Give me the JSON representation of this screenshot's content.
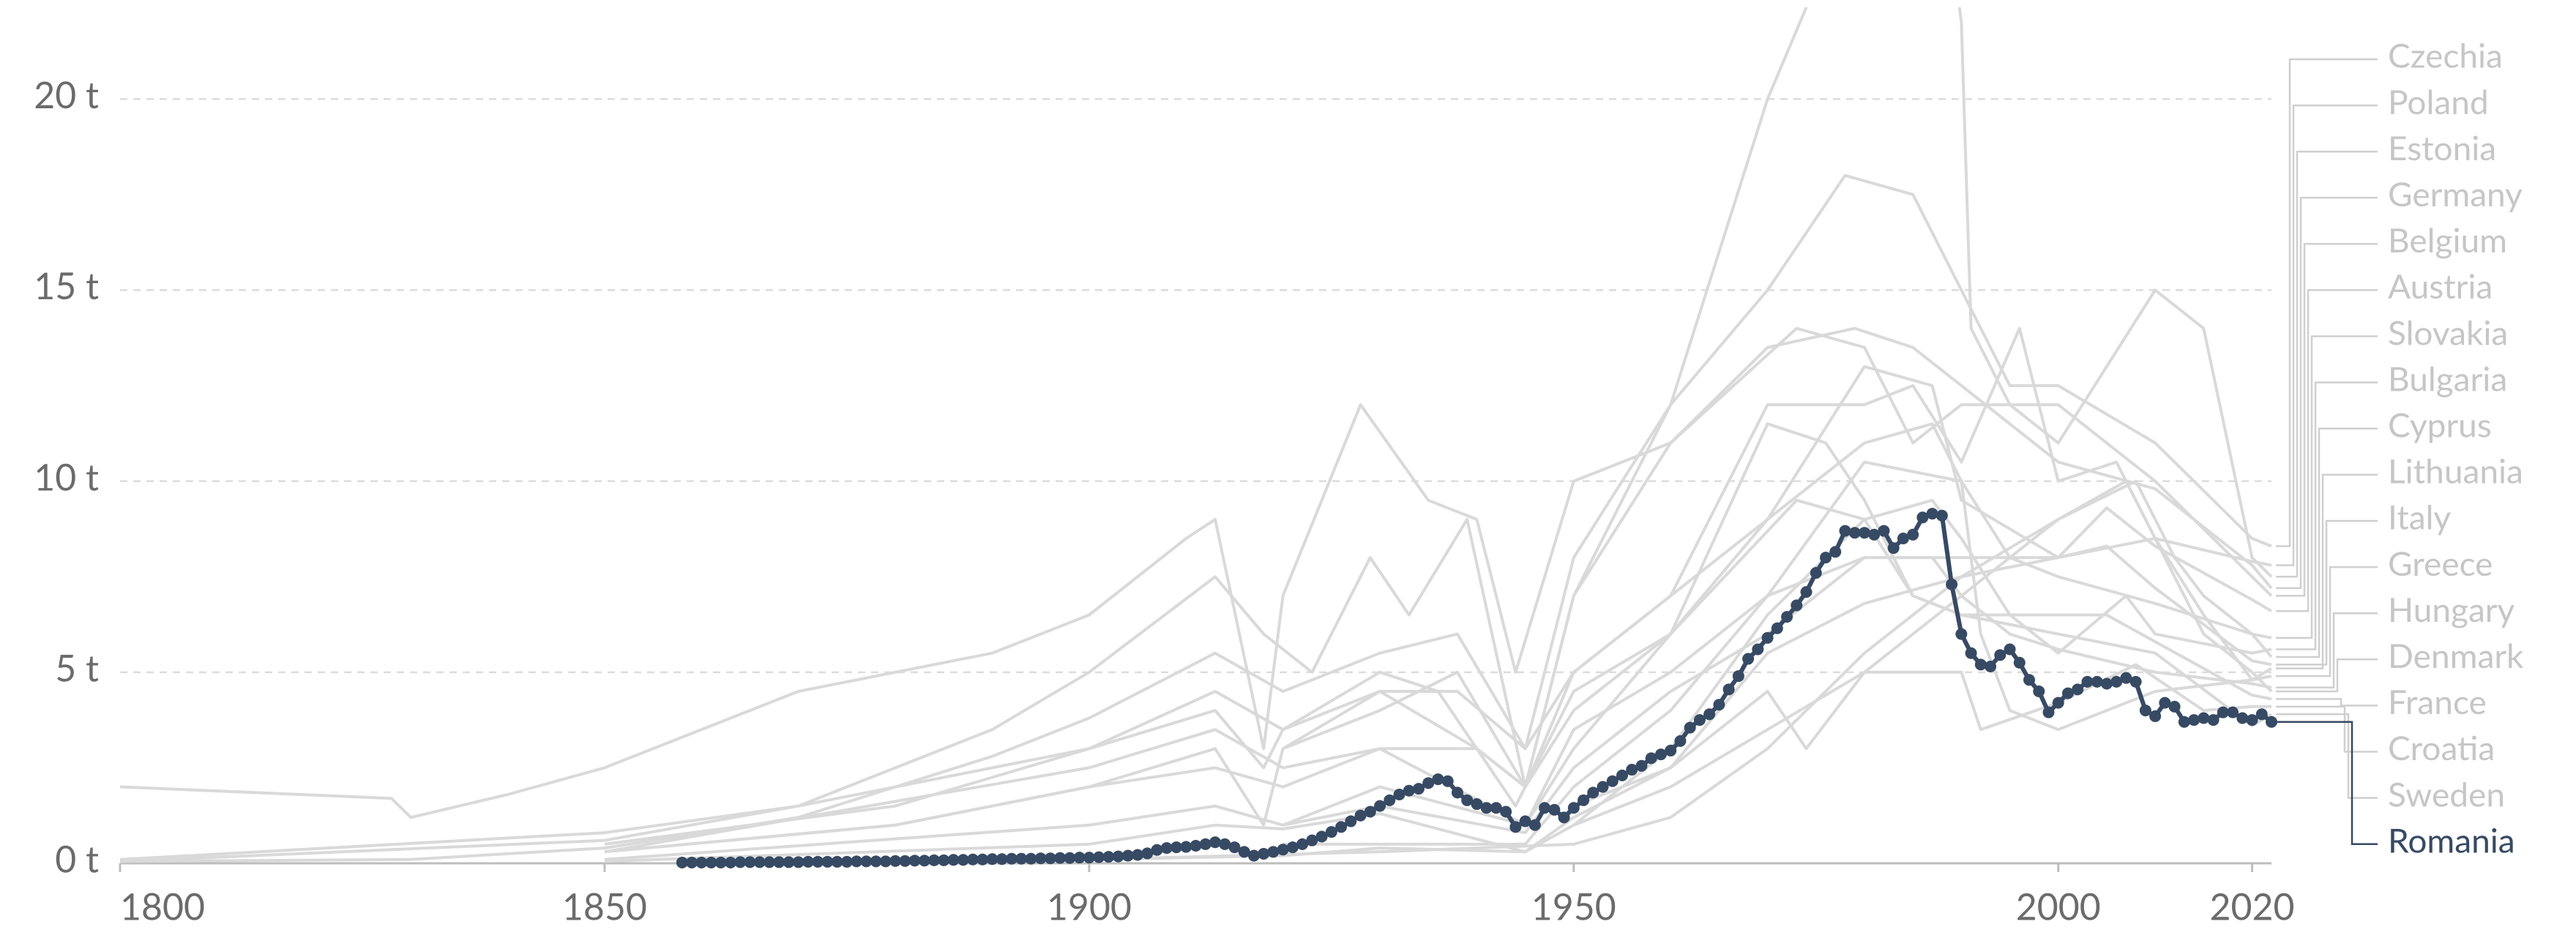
{
  "chart_data": {
    "type": "line",
    "xlim": [
      1800,
      2022
    ],
    "ylim": [
      0,
      22.4
    ],
    "xticks": [
      1800,
      1850,
      1900,
      1950,
      2000,
      2020
    ],
    "yticks": [
      {
        "value": 0,
        "label": "0 t"
      },
      {
        "value": 5,
        "label": "5 t"
      },
      {
        "value": 10,
        "label": "10 t"
      },
      {
        "value": 15,
        "label": "15 t"
      },
      {
        "value": 20,
        "label": "20 t"
      }
    ],
    "grid": true,
    "series": [
      {
        "name": "Czechia",
        "color": "#d9d9d9",
        "x": [
          1800,
          1830,
          1850,
          1870,
          1890,
          1900,
          1913,
          1920,
          1930,
          1938,
          1945,
          1950,
          1960,
          1970,
          1978,
          1985,
          1990,
          1995,
          2000,
          2010,
          2020,
          2022
        ],
        "values": [
          0.05,
          0.1,
          0.4,
          1.2,
          2.8,
          3.8,
          5.5,
          4.5,
          5.5,
          6,
          3,
          8,
          12,
          15,
          18,
          17.5,
          15,
          12.5,
          12.5,
          11,
          8.5,
          8.3
        ]
      },
      {
        "name": "Poland",
        "color": "#d9d9d9",
        "x": [
          1850,
          1880,
          1900,
          1913,
          1920,
          1930,
          1938,
          1945,
          1950,
          1960,
          1970,
          1980,
          1987,
          1990,
          2000,
          2010,
          2020,
          2022
        ],
        "values": [
          0.5,
          1.5,
          3,
          4.5,
          3.5,
          4.5,
          4.5,
          3,
          5,
          7,
          9,
          13,
          12.5,
          9.5,
          8,
          8.5,
          7.9,
          7.8
        ]
      },
      {
        "name": "Estonia",
        "color": "#d9d9d9",
        "x": [
          1920,
          1930,
          1938,
          1945,
          1950,
          1960,
          1965,
          1970,
          1975,
          1980,
          1985,
          1989,
          1990,
          1991,
          1995,
          2000,
          2005,
          2010,
          2015,
          2020,
          2022
        ],
        "values": [
          3,
          4,
          5,
          2,
          7,
          12,
          16,
          20,
          23,
          25,
          24,
          24,
          22,
          14,
          12,
          11,
          13,
          15,
          14,
          8,
          7.5
        ]
      },
      {
        "name": "Germany",
        "color": "#d9d9d9",
        "x": [
          1800,
          1850,
          1870,
          1890,
          1900,
          1913,
          1918,
          1923,
          1929,
          1933,
          1939,
          1945,
          1950,
          1960,
          1970,
          1979,
          1985,
          1990,
          2000,
          2010,
          2020,
          2022
        ],
        "values": [
          0.05,
          0.6,
          1.5,
          3.5,
          5,
          7.5,
          6,
          5,
          8,
          6.5,
          9,
          2,
          7,
          11,
          13.5,
          14,
          13.5,
          12.5,
          10.5,
          9.8,
          7.8,
          7.2
        ]
      },
      {
        "name": "Belgium",
        "color": "#d9d9d9",
        "x": [
          1800,
          1828,
          1830,
          1840,
          1850,
          1870,
          1890,
          1900,
          1910,
          1913,
          1918,
          1920,
          1928,
          1935,
          1940,
          1944,
          1950,
          1960,
          1973,
          1980,
          1985,
          1990,
          2000,
          2010,
          2020,
          2022
        ],
        "values": [
          2,
          1.7,
          1.2,
          1.8,
          2.5,
          4.5,
          5.5,
          6.5,
          8.5,
          9,
          3,
          7,
          12,
          9.5,
          9,
          5,
          10,
          11,
          14,
          13.5,
          11,
          12,
          12,
          10,
          7.5,
          7
        ]
      },
      {
        "name": "Austria",
        "color": "#d9d9d9",
        "x": [
          1850,
          1900,
          1913,
          1920,
          1930,
          1945,
          1950,
          1960,
          1970,
          1980,
          1990,
          2000,
          2005,
          2010,
          2020,
          2022
        ],
        "values": [
          0.3,
          2.5,
          3.5,
          2.5,
          3,
          1,
          3.5,
          5,
          7,
          8,
          8,
          8,
          9.3,
          8.3,
          6.9,
          6.6
        ]
      },
      {
        "name": "Slovakia",
        "color": "#d9d9d9",
        "x": [
          1920,
          1930,
          1945,
          1950,
          1960,
          1970,
          1980,
          1987,
          1990,
          1995,
          2000,
          2010,
          2020,
          2022
        ],
        "values": [
          1,
          2,
          1,
          3,
          6,
          9,
          11,
          11.5,
          10,
          8,
          7.5,
          6.8,
          6,
          5.9
        ]
      },
      {
        "name": "Bulgaria",
        "color": "#d9d9d9",
        "x": [
          1900,
          1920,
          1930,
          1945,
          1950,
          1960,
          1970,
          1980,
          1987,
          1990,
          1995,
          2000,
          2007,
          2010,
          2020,
          2022
        ],
        "values": [
          0.1,
          0.2,
          0.4,
          0.3,
          1,
          3,
          6.5,
          9,
          9.5,
          8.5,
          6.5,
          5.5,
          7,
          6,
          5.5,
          5.6
        ]
      },
      {
        "name": "Cyprus",
        "color": "#d9d9d9",
        "x": [
          1950,
          1960,
          1970,
          1974,
          1980,
          1990,
          2000,
          2008,
          2012,
          2015,
          2020,
          2022
        ],
        "values": [
          1.5,
          2.5,
          4.5,
          3,
          5,
          7,
          9,
          10,
          8,
          7,
          6,
          5.4
        ]
      },
      {
        "name": "Lithuania",
        "color": "#d9d9d9",
        "x": [
          1920,
          1945,
          1950,
          1960,
          1970,
          1980,
          1990,
          1992,
          1995,
          2000,
          2010,
          2020,
          2022
        ],
        "values": [
          0.5,
          0.5,
          2,
          4,
          7,
          10.5,
          10,
          6,
          4,
          3.5,
          4.5,
          4.8,
          5.1
        ]
      },
      {
        "name": "Italy",
        "color": "#d9d9d9",
        "x": [
          1850,
          1900,
          1913,
          1920,
          1930,
          1945,
          1950,
          1960,
          1970,
          1980,
          1990,
          2000,
          2005,
          2010,
          2020,
          2022
        ],
        "values": [
          0.05,
          0.5,
          1,
          0.9,
          1.3,
          0.3,
          1.2,
          2.5,
          5.5,
          6.8,
          7.5,
          8,
          8.3,
          7.2,
          5.3,
          5.2
        ]
      },
      {
        "name": "Greece",
        "color": "#d9d9d9",
        "x": [
          1900,
          1930,
          1950,
          1960,
          1970,
          1980,
          1990,
          2000,
          2007,
          2010,
          2015,
          2020,
          2022
        ],
        "values": [
          0.1,
          0.3,
          0.5,
          1.2,
          3,
          5.5,
          7.5,
          9,
          10,
          8.5,
          6.5,
          4.8,
          4.9
        ]
      },
      {
        "name": "Hungary",
        "color": "#d9d9d9",
        "x": [
          1850,
          1900,
          1913,
          1920,
          1930,
          1945,
          1950,
          1960,
          1970,
          1980,
          1987,
          1990,
          1995,
          2000,
          2010,
          2020,
          2022
        ],
        "values": [
          0.1,
          1,
          1.5,
          1,
          1.5,
          0.8,
          2.5,
          4.5,
          6,
          8,
          8,
          7,
          6,
          5.6,
          5,
          4.7,
          4.6
        ]
      },
      {
        "name": "Denmark",
        "color": "#d9d9d9",
        "x": [
          1850,
          1880,
          1900,
          1913,
          1918,
          1920,
          1930,
          1940,
          1945,
          1950,
          1960,
          1970,
          1980,
          1985,
          1990,
          1996,
          2000,
          2006,
          2010,
          2015,
          2020,
          2022
        ],
        "values": [
          0.3,
          1,
          2,
          3,
          1,
          3,
          4.5,
          3,
          2,
          5,
          7,
          12,
          12,
          12.5,
          10.5,
          14,
          10,
          10.5,
          8.5,
          6,
          5,
          4.5
        ]
      },
      {
        "name": "France",
        "color": "#d9d9d9",
        "x": [
          1800,
          1850,
          1870,
          1900,
          1913,
          1918,
          1920,
          1930,
          1936,
          1944,
          1950,
          1960,
          1973,
          1980,
          1985,
          1990,
          2000,
          2005,
          2010,
          2020,
          2022
        ],
        "values": [
          0.1,
          0.8,
          1.5,
          3,
          4,
          2.5,
          3.5,
          5,
          4.5,
          1.5,
          4.5,
          6,
          9.5,
          9,
          7,
          6.5,
          6.5,
          6.5,
          5.8,
          4.4,
          4.3
        ]
      },
      {
        "name": "Croatia",
        "color": "#d9d9d9",
        "x": [
          1950,
          1960,
          1970,
          1980,
          1990,
          1992,
          2000,
          2008,
          2015,
          2020,
          2022
        ],
        "values": [
          1,
          2,
          3.5,
          5,
          5,
          3.5,
          4.2,
          5.2,
          4,
          4.1,
          4.1
        ]
      },
      {
        "name": "Sweden",
        "color": "#d9d9d9",
        "x": [
          1850,
          1880,
          1900,
          1913,
          1920,
          1930,
          1940,
          1945,
          1950,
          1960,
          1970,
          1976,
          1980,
          1985,
          1990,
          2000,
          2010,
          2020,
          2022
        ],
        "values": [
          0.3,
          1,
          2,
          2.5,
          2,
          3,
          3,
          2,
          4,
          6,
          11.5,
          11,
          9.5,
          7,
          6.5,
          6,
          5.5,
          3.6,
          3.9
        ]
      },
      {
        "name": "Romania",
        "color": "#374a64",
        "marker": true,
        "x": [
          1858,
          1859,
          1860,
          1861,
          1862,
          1863,
          1864,
          1865,
          1866,
          1867,
          1868,
          1869,
          1870,
          1871,
          1872,
          1873,
          1874,
          1875,
          1876,
          1877,
          1878,
          1879,
          1880,
          1881,
          1882,
          1883,
          1884,
          1885,
          1886,
          1887,
          1888,
          1889,
          1890,
          1891,
          1892,
          1893,
          1894,
          1895,
          1896,
          1897,
          1898,
          1899,
          1900,
          1901,
          1902,
          1903,
          1904,
          1905,
          1906,
          1907,
          1908,
          1909,
          1910,
          1911,
          1912,
          1913,
          1914,
          1915,
          1916,
          1917,
          1918,
          1919,
          1920,
          1921,
          1922,
          1923,
          1924,
          1925,
          1926,
          1927,
          1928,
          1929,
          1930,
          1931,
          1932,
          1933,
          1934,
          1935,
          1936,
          1937,
          1938,
          1939,
          1940,
          1941,
          1942,
          1943,
          1944,
          1945,
          1946,
          1947,
          1948,
          1949,
          1950,
          1951,
          1952,
          1953,
          1954,
          1955,
          1956,
          1957,
          1958,
          1959,
          1960,
          1961,
          1962,
          1963,
          1964,
          1965,
          1966,
          1967,
          1968,
          1969,
          1970,
          1971,
          1972,
          1973,
          1974,
          1975,
          1976,
          1977,
          1978,
          1979,
          1980,
          1981,
          1982,
          1983,
          1984,
          1985,
          1986,
          1987,
          1988,
          1989,
          1990,
          1991,
          1992,
          1993,
          1994,
          1995,
          1996,
          1997,
          1998,
          1999,
          2000,
          2001,
          2002,
          2003,
          2004,
          2005,
          2006,
          2007,
          2008,
          2009,
          2010,
          2011,
          2012,
          2013,
          2014,
          2015,
          2016,
          2017,
          2018,
          2019,
          2020,
          2021,
          2022
        ],
        "values": [
          0.02,
          0.02,
          0.02,
          0.02,
          0.02,
          0.02,
          0.03,
          0.03,
          0.03,
          0.03,
          0.03,
          0.03,
          0.03,
          0.04,
          0.04,
          0.04,
          0.04,
          0.04,
          0.05,
          0.05,
          0.05,
          0.05,
          0.06,
          0.06,
          0.07,
          0.07,
          0.08,
          0.08,
          0.09,
          0.09,
          0.1,
          0.1,
          0.11,
          0.11,
          0.12,
          0.12,
          0.12,
          0.13,
          0.13,
          0.14,
          0.14,
          0.15,
          0.15,
          0.16,
          0.17,
          0.18,
          0.2,
          0.22,
          0.26,
          0.35,
          0.4,
          0.42,
          0.43,
          0.46,
          0.5,
          0.55,
          0.5,
          0.42,
          0.3,
          0.2,
          0.25,
          0.3,
          0.36,
          0.42,
          0.5,
          0.6,
          0.7,
          0.82,
          0.95,
          1.1,
          1.25,
          1.35,
          1.5,
          1.65,
          1.8,
          1.9,
          1.95,
          2.1,
          2.2,
          2.15,
          1.85,
          1.65,
          1.55,
          1.45,
          1.45,
          1.35,
          0.95,
          1.1,
          1.0,
          1.45,
          1.4,
          1.2,
          1.45,
          1.65,
          1.85,
          2.0,
          2.15,
          2.3,
          2.45,
          2.55,
          2.75,
          2.85,
          2.95,
          3.2,
          3.55,
          3.75,
          3.9,
          4.15,
          4.55,
          4.9,
          5.35,
          5.6,
          5.9,
          6.15,
          6.45,
          6.75,
          7.1,
          7.6,
          8.0,
          8.15,
          8.7,
          8.65,
          8.65,
          8.6,
          8.7,
          8.25,
          8.5,
          8.6,
          9.05,
          9.15,
          9.1,
          7.3,
          6.0,
          5.5,
          5.2,
          5.15,
          5.45,
          5.6,
          5.25,
          4.8,
          4.5,
          3.95,
          4.2,
          4.45,
          4.55,
          4.75,
          4.75,
          4.7,
          4.75,
          4.85,
          4.75,
          4.0,
          3.85,
          4.2,
          4.1,
          3.7,
          3.75,
          3.8,
          3.75,
          3.95,
          3.95,
          3.8,
          3.75,
          3.9,
          3.7
        ]
      }
    ]
  }
}
